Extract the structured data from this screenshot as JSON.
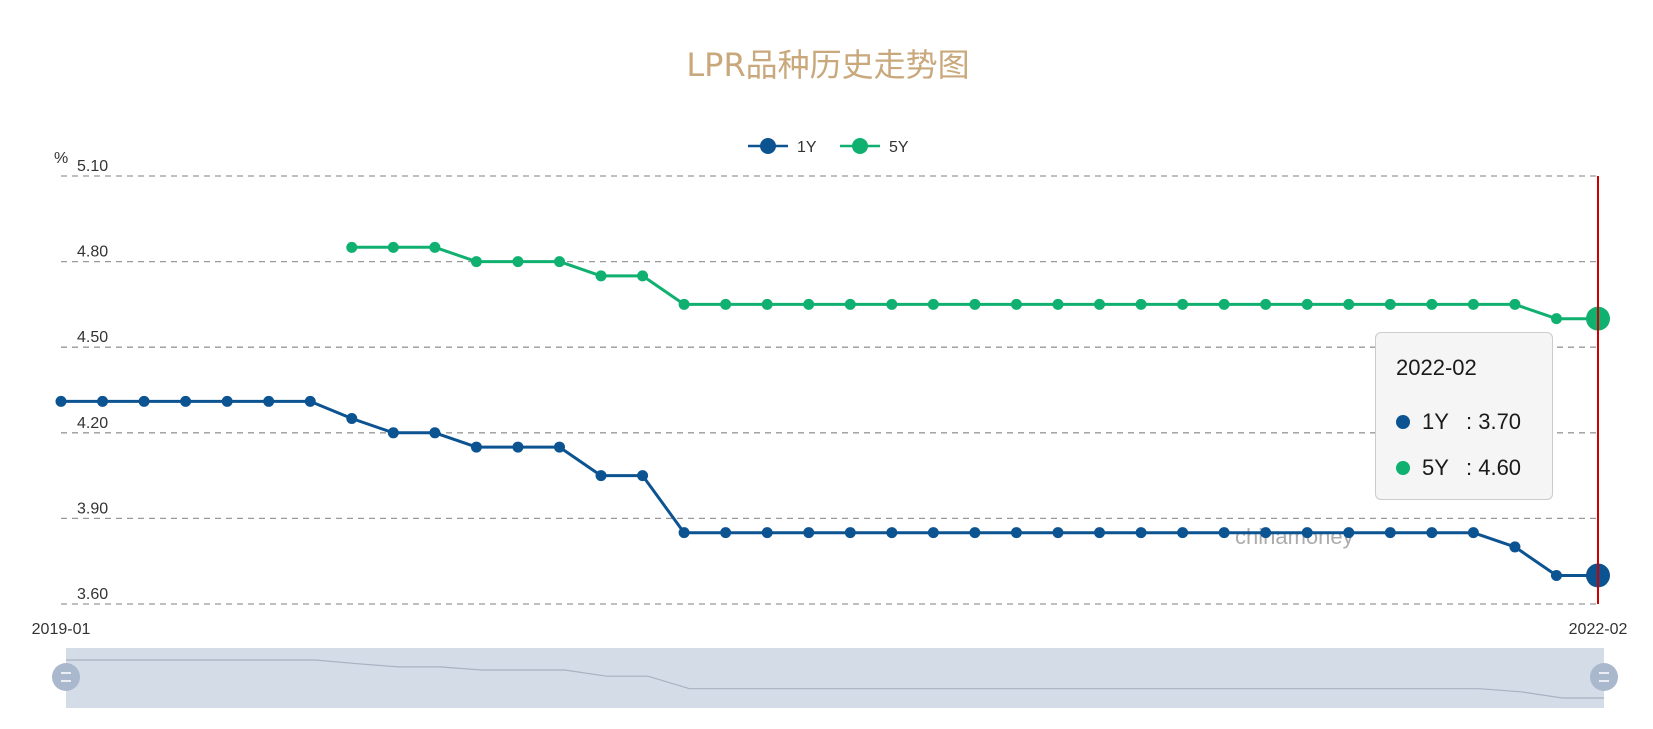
{
  "chart_data": {
    "type": "line",
    "title": "LPR品种历史走势图",
    "y_unit_label": "%",
    "ylim": [
      3.6,
      5.1
    ],
    "yticks": [
      "3.60",
      "3.90",
      "4.20",
      "4.50",
      "4.80",
      "5.10"
    ],
    "x_start_label": "2019-01",
    "x_end_label": "2022-02",
    "grid": true,
    "legend_position": "top-center",
    "series": [
      {
        "name": "1Y",
        "color": "#0c5391",
        "values": [
          4.31,
          4.31,
          4.31,
          4.31,
          4.31,
          4.31,
          4.31,
          4.25,
          4.2,
          4.2,
          4.15,
          4.15,
          4.15,
          4.05,
          4.05,
          3.85,
          3.85,
          3.85,
          3.85,
          3.85,
          3.85,
          3.85,
          3.85,
          3.85,
          3.85,
          3.85,
          3.85,
          3.85,
          3.85,
          3.85,
          3.85,
          3.85,
          3.85,
          3.85,
          3.85,
          3.8,
          3.7,
          3.7
        ]
      },
      {
        "name": "5Y",
        "color": "#10b070",
        "values": [
          null,
          null,
          null,
          null,
          null,
          null,
          null,
          4.85,
          4.85,
          4.85,
          4.8,
          4.8,
          4.8,
          4.75,
          4.75,
          4.65,
          4.65,
          4.65,
          4.65,
          4.65,
          4.65,
          4.65,
          4.65,
          4.65,
          4.65,
          4.65,
          4.65,
          4.65,
          4.65,
          4.65,
          4.65,
          4.65,
          4.65,
          4.65,
          4.65,
          4.65,
          4.6,
          4.6
        ]
      }
    ]
  },
  "tooltip": {
    "date": "2022-02",
    "rows": [
      {
        "name": "1Y",
        "value": ": 3.70",
        "color": "#0c5391"
      },
      {
        "name": "5Y",
        "value": ": 4.60",
        "color": "#10b070"
      }
    ]
  },
  "watermark": "chinamoney",
  "cursor_line_color": "#cc0000",
  "navigator_color": "#d4dce8"
}
